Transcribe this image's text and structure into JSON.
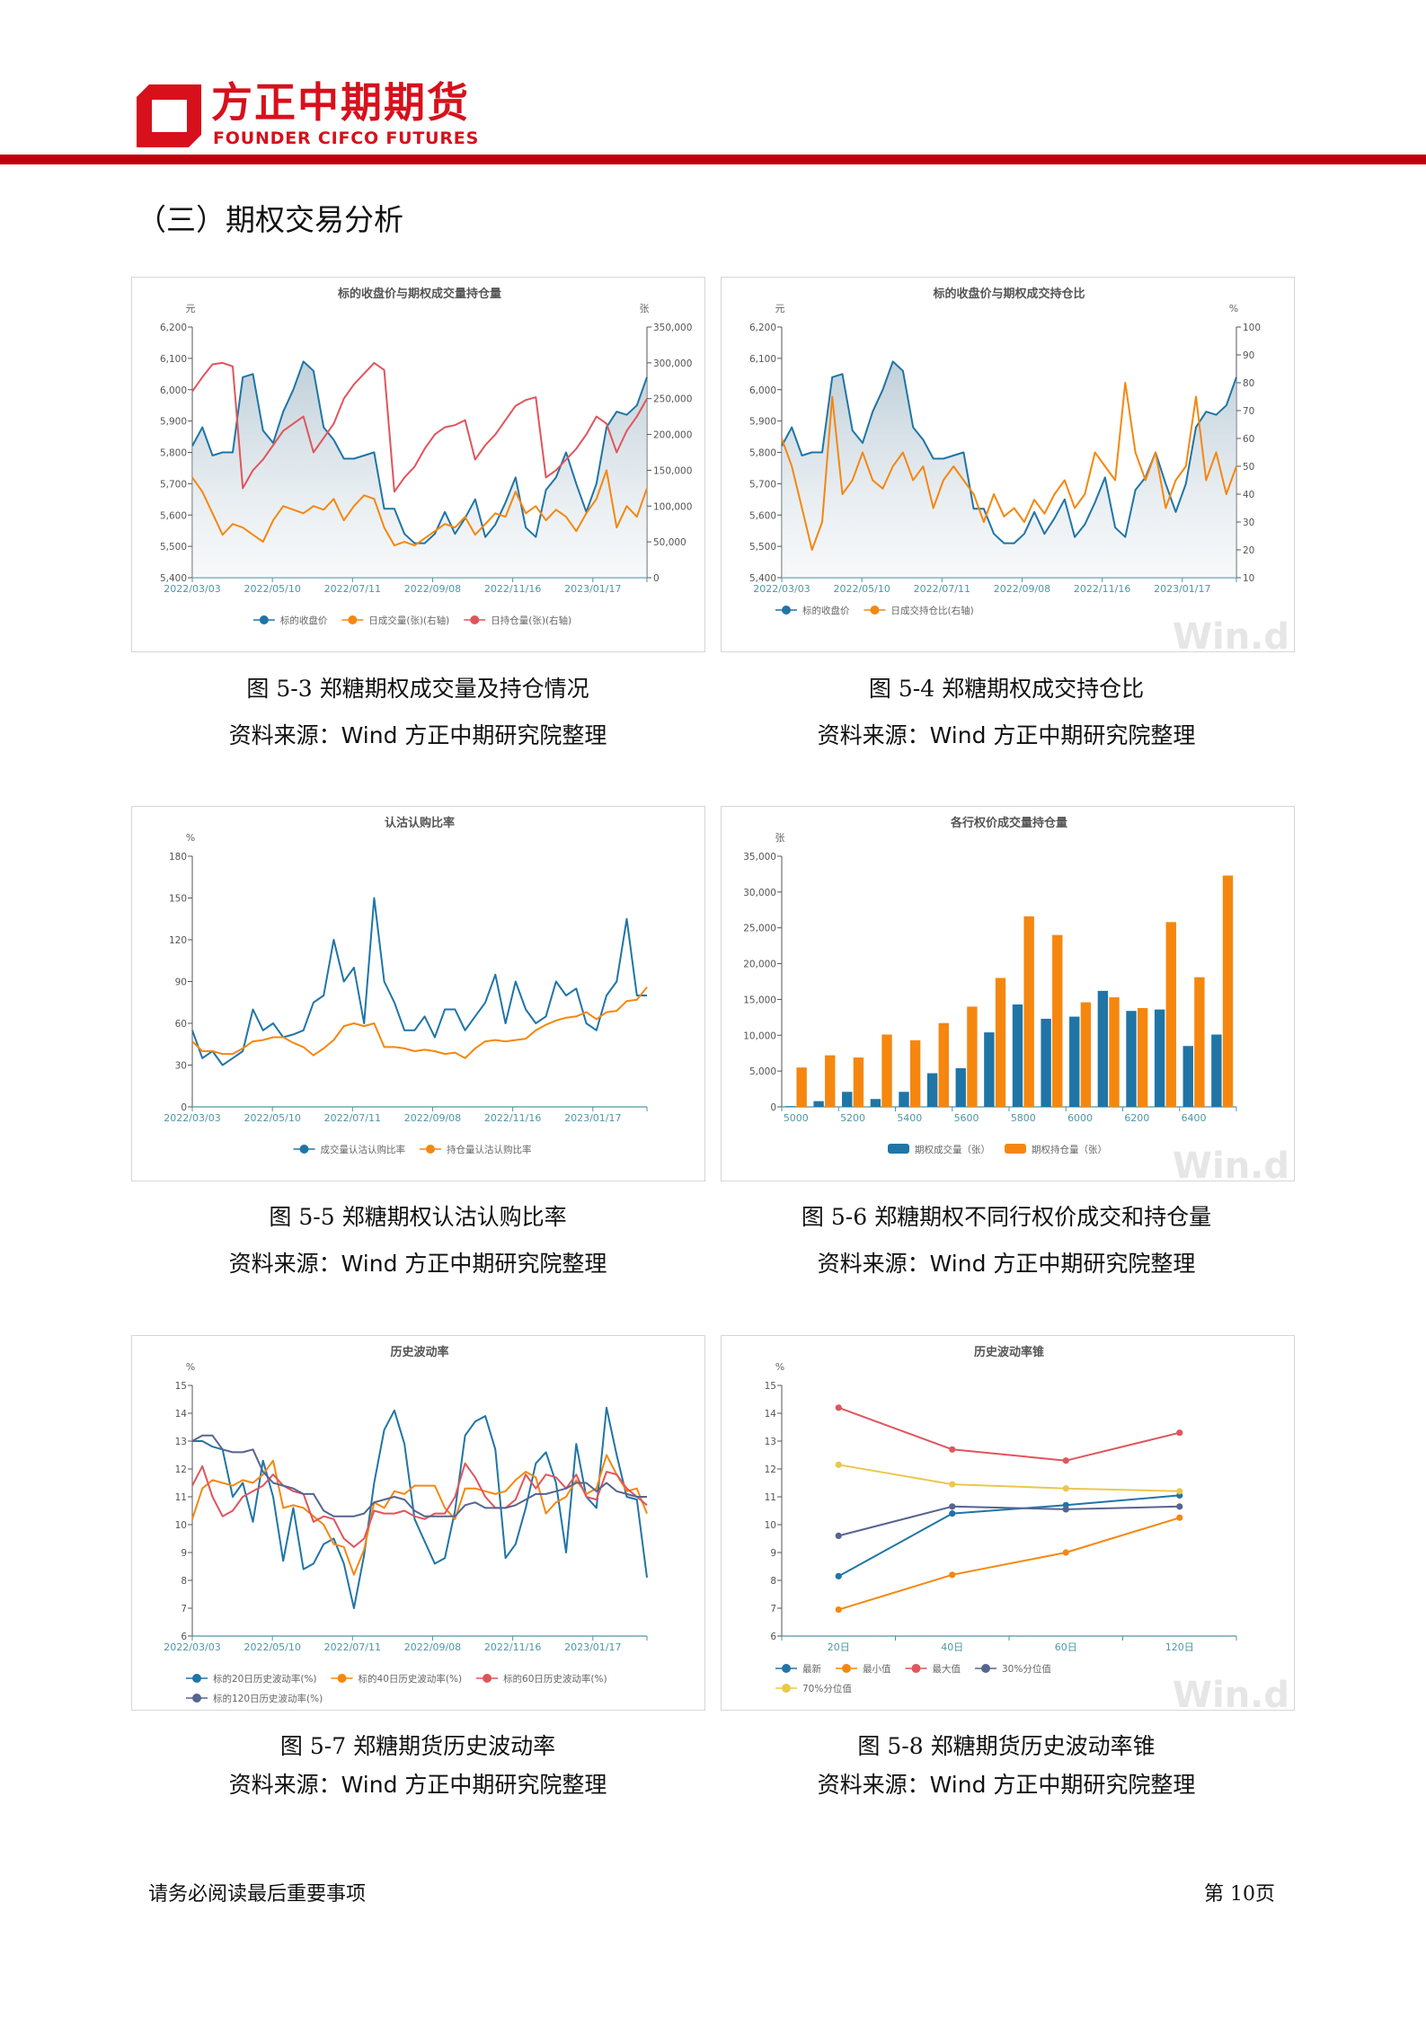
{
  "header": {
    "logo_cn": "方正中期期货",
    "logo_en": "FOUNDER CIFCO FUTURES",
    "brand_color": "#d7101c",
    "bar_color": "#c0000c"
  },
  "section_title": "（三）期权交易分析",
  "footer": {
    "left": "请务必阅读最后重要事项",
    "right": "第 10页"
  },
  "colors": {
    "blue": "#1f75a6",
    "orange": "#f5870f",
    "red": "#e0555c",
    "slate": "#56648f",
    "yellow": "#e9c84c",
    "axis": "#4d97a3"
  },
  "captions": [
    {
      "figure": "图 5-3  郑糖期权成交量及持仓情况",
      "source_prefix": "资料来源：",
      "source_en": "Wind",
      "source_suffix": "  方正中期研究院整理"
    },
    {
      "figure": "图 5-4   郑糖期权成交持仓比",
      "source_prefix": "资料来源：",
      "source_en": "Wind",
      "source_suffix": "  方正中期研究院整理"
    },
    {
      "figure": "图 5-5    郑糖期权认沽认购比率",
      "source_prefix": "资料来源：",
      "source_en": "Wind",
      "source_suffix": "  方正中期研究院整理"
    },
    {
      "figure": "图 5-6    郑糖期权不同行权价成交和持仓量",
      "source_prefix": "资料来源：",
      "source_en": "Wind",
      "source_suffix": "  方正中期研究院整理"
    },
    {
      "figure": "图 5-7    郑糖期货历史波动率",
      "source_prefix": "资料来源：",
      "source_en": "Wind",
      "source_suffix": "  方正中期研究院整理"
    },
    {
      "figure": "图 5-8   郑糖期货历史波动率锥",
      "source_prefix": "资料来源：",
      "source_en": "Wind",
      "source_suffix": "  方正中期研究院整理"
    }
  ],
  "chart_data": [
    {
      "type": "line",
      "title": "标的收盘价与期权成交量持仓量",
      "ylabel_left": "元",
      "ylabel_right": "张",
      "x_ticks": [
        "2022/03/03",
        "2022/05/10",
        "2022/07/11",
        "2022/09/08",
        "2022/11/16",
        "2023/01/17"
      ],
      "ylim_left": [
        5400,
        6200
      ],
      "yticks_left": [
        5400,
        5500,
        5600,
        5700,
        5800,
        5900,
        6000,
        6100,
        6200
      ],
      "ylim_right": [
        0,
        350000
      ],
      "yticks_right": [
        0,
        50000,
        100000,
        150000,
        200000,
        250000,
        300000,
        350000
      ],
      "legend_position": "bottom",
      "grid": false,
      "watermark": "",
      "series": [
        {
          "name": "标的收盘价",
          "axis": "left",
          "color": "#1f75a6",
          "area": true,
          "values": [
            5820,
            5880,
            5790,
            5800,
            5800,
            6040,
            6050,
            5870,
            5830,
            5930,
            6000,
            6090,
            6060,
            5880,
            5840,
            5780,
            5780,
            5790,
            5800,
            5620,
            5620,
            5540,
            5510,
            5510,
            5540,
            5610,
            5540,
            5590,
            5650,
            5530,
            5570,
            5640,
            5720,
            5560,
            5530,
            5680,
            5720,
            5800,
            5700,
            5610,
            5700,
            5880,
            5930,
            5920,
            5950,
            6040
          ]
        },
        {
          "name": "日成交量(张)(右轴)",
          "axis": "right",
          "color": "#f5870f",
          "values": [
            140000,
            120000,
            90000,
            60000,
            75000,
            70000,
            60000,
            50000,
            80000,
            100000,
            95000,
            90000,
            100000,
            95000,
            110000,
            80000,
            100000,
            115000,
            110000,
            70000,
            45000,
            50000,
            45000,
            55000,
            65000,
            75000,
            70000,
            85000,
            60000,
            75000,
            90000,
            85000,
            120000,
            90000,
            100000,
            80000,
            95000,
            85000,
            65000,
            90000,
            110000,
            150000,
            70000,
            100000,
            85000,
            125000
          ]
        },
        {
          "name": "日持仓量(张)(右轴)",
          "axis": "right",
          "color": "#e0555c",
          "values": [
            260000,
            280000,
            298000,
            300000,
            295000,
            125000,
            150000,
            165000,
            185000,
            205000,
            215000,
            225000,
            175000,
            195000,
            215000,
            250000,
            270000,
            285000,
            300000,
            290000,
            120000,
            140000,
            155000,
            180000,
            200000,
            210000,
            213000,
            220000,
            165000,
            185000,
            200000,
            220000,
            240000,
            248000,
            252000,
            140000,
            150000,
            165000,
            180000,
            200000,
            225000,
            215000,
            175000,
            205000,
            225000,
            250000
          ]
        }
      ]
    },
    {
      "type": "line",
      "title": "标的收盘价与期权成交持仓比",
      "ylabel_left": "元",
      "ylabel_right": "%",
      "x_ticks": [
        "2022/03/03",
        "2022/05/10",
        "2022/07/11",
        "2022/09/08",
        "2022/11/16",
        "2023/01/17"
      ],
      "ylim_left": [
        5400,
        6200
      ],
      "yticks_left": [
        5400,
        5500,
        5600,
        5700,
        5800,
        5900,
        6000,
        6100,
        6200
      ],
      "ylim_right": [
        10,
        100
      ],
      "yticks_right": [
        10,
        20,
        30,
        40,
        50,
        60,
        70,
        80,
        90,
        100
      ],
      "legend_position": "bottom",
      "grid": false,
      "watermark": "Win.d",
      "series": [
        {
          "name": "标的收盘价",
          "axis": "left",
          "color": "#1f75a6",
          "area": true,
          "values": [
            5820,
            5880,
            5790,
            5800,
            5800,
            6040,
            6050,
            5870,
            5830,
            5930,
            6000,
            6090,
            6060,
            5880,
            5840,
            5780,
            5780,
            5790,
            5800,
            5620,
            5620,
            5540,
            5510,
            5510,
            5540,
            5610,
            5540,
            5590,
            5650,
            5530,
            5570,
            5640,
            5720,
            5560,
            5530,
            5680,
            5720,
            5800,
            5700,
            5610,
            5700,
            5880,
            5930,
            5920,
            5950,
            6040
          ]
        },
        {
          "name": "日成交持仓比(右轴)",
          "axis": "right",
          "color": "#f5870f",
          "values": [
            60,
            50,
            35,
            20,
            30,
            75,
            40,
            45,
            55,
            45,
            42,
            50,
            55,
            45,
            50,
            35,
            45,
            50,
            45,
            40,
            30,
            40,
            32,
            35,
            30,
            38,
            33,
            40,
            45,
            35,
            40,
            55,
            50,
            45,
            80,
            55,
            45,
            55,
            35,
            45,
            50,
            75,
            45,
            55,
            40,
            50
          ]
        }
      ]
    },
    {
      "type": "line",
      "title": "认沽认购比率",
      "ylabel_left": "%",
      "x_ticks": [
        "2022/03/03",
        "2022/05/10",
        "2022/07/11",
        "2022/09/08",
        "2022/11/16",
        "2023/01/17"
      ],
      "ylim_left": [
        0,
        180
      ],
      "yticks_left": [
        0,
        30,
        60,
        90,
        120,
        150,
        180
      ],
      "legend_position": "bottom",
      "grid": false,
      "watermark": "",
      "series": [
        {
          "name": "成交量认沽认购比率",
          "axis": "left",
          "color": "#1f75a6",
          "values": [
            55,
            35,
            40,
            30,
            35,
            40,
            70,
            55,
            60,
            50,
            52,
            55,
            75,
            80,
            120,
            90,
            100,
            60,
            150,
            90,
            75,
            55,
            55,
            65,
            50,
            70,
            70,
            55,
            65,
            75,
            95,
            60,
            90,
            70,
            60,
            65,
            90,
            80,
            85,
            60,
            55,
            80,
            90,
            135,
            80,
            80
          ]
        },
        {
          "name": "持仓量认沽认购比率",
          "axis": "left",
          "color": "#f5870f",
          "values": [
            47,
            40,
            40,
            38,
            38,
            42,
            47,
            48,
            50,
            50,
            46,
            43,
            37,
            42,
            48,
            58,
            60,
            58,
            60,
            43,
            43,
            42,
            40,
            41,
            40,
            38,
            39,
            35,
            42,
            47,
            48,
            47,
            48,
            49,
            55,
            59,
            62,
            64,
            65,
            68,
            63,
            68,
            69,
            76,
            77,
            86
          ]
        }
      ]
    },
    {
      "type": "bar",
      "title": "各行权价成交量持仓量",
      "ylabel_left": "张",
      "categories": [
        "5000",
        "5100",
        "5200",
        "5300",
        "5400",
        "5500",
        "5600",
        "5700",
        "5800",
        "5900",
        "6000",
        "6100",
        "6200",
        "6300",
        "6400",
        "6500"
      ],
      "x_tick_labels": [
        "5000",
        "5200",
        "5400",
        "5600",
        "5800",
        "6000",
        "6200",
        "6400"
      ],
      "ylim_left": [
        0,
        35000
      ],
      "yticks_left": [
        0,
        5000,
        10000,
        15000,
        20000,
        25000,
        30000,
        35000
      ],
      "legend_position": "bottom",
      "grid": false,
      "watermark": "Win.d",
      "series": [
        {
          "name": "期权成交量（张）",
          "color": "#1f75a6",
          "values": [
            100,
            800,
            2100,
            1100,
            2100,
            4700,
            5400,
            10400,
            14300,
            12300,
            12600,
            16200,
            13400,
            13600,
            8500,
            10100
          ]
        },
        {
          "name": "期权持仓量（张）",
          "color": "#f5870f",
          "values": [
            5500,
            7200,
            6900,
            10100,
            9300,
            11700,
            14000,
            18000,
            26600,
            24000,
            14600,
            15300,
            13800,
            25800,
            18100,
            32300
          ]
        }
      ]
    },
    {
      "type": "line",
      "title": "历史波动率",
      "ylabel_left": "%",
      "x_ticks": [
        "2022/03/03",
        "2022/05/10",
        "2022/07/11",
        "2022/09/08",
        "2022/11/16",
        "2023/01/17"
      ],
      "ylim_left": [
        6,
        15
      ],
      "yticks_left": [
        6,
        7,
        8,
        9,
        10,
        11,
        12,
        13,
        14,
        15
      ],
      "legend_position": "bottom",
      "grid": false,
      "watermark": "",
      "series": [
        {
          "name": "标的20日历史波动率(%)",
          "axis": "left",
          "color": "#1f75a6",
          "values": [
            13,
            13,
            12.8,
            12.7,
            11,
            11.5,
            10.1,
            12.3,
            11,
            8.7,
            10.6,
            8.4,
            8.6,
            9.3,
            9.5,
            8.6,
            7.0,
            8.9,
            11.5,
            13.4,
            14.1,
            12.9,
            10.2,
            9.4,
            8.6,
            8.8,
            10.5,
            13.2,
            13.7,
            13.9,
            12.7,
            8.8,
            9.3,
            10.6,
            12.2,
            12.6,
            11.5,
            9.0,
            12.9,
            11.0,
            10.6,
            14.2,
            12.5,
            11.0,
            10.9,
            8.1
          ]
        },
        {
          "name": "标的40日历史波动率(%)",
          "axis": "left",
          "color": "#f5870f",
          "values": [
            10.2,
            11.3,
            11.6,
            11.5,
            11.4,
            11.6,
            11.5,
            11.8,
            12.3,
            10.6,
            10.7,
            10.6,
            10.3,
            10.0,
            9.3,
            9.2,
            8.2,
            9.1,
            10.8,
            10.6,
            11.2,
            11.1,
            11.4,
            11.4,
            11.4,
            10.6,
            10.2,
            11.3,
            11.3,
            11.2,
            11.1,
            11.2,
            11.6,
            11.9,
            11.7,
            10.4,
            10.8,
            11.0,
            11.6,
            11.1,
            11.3,
            12.5,
            11.8,
            11.2,
            11.3,
            10.4
          ]
        },
        {
          "name": "标的60日历史波动率(%)",
          "axis": "left",
          "color": "#e0555c",
          "values": [
            11.4,
            12.1,
            11.0,
            10.3,
            10.5,
            11.0,
            11.2,
            11.4,
            11.8,
            11.4,
            11.2,
            11.1,
            10.1,
            10.3,
            10.2,
            9.5,
            9.2,
            9.5,
            10.5,
            10.4,
            10.4,
            10.5,
            10.3,
            10.2,
            10.4,
            10.4,
            11.0,
            12.2,
            11.7,
            11.0,
            10.6,
            10.6,
            10.9,
            11.8,
            11.3,
            11.8,
            11.7,
            11.3,
            11.8,
            11.0,
            10.9,
            11.9,
            11.8,
            11.3,
            11.0,
            10.7
          ]
        },
        {
          "name": "标的120日历史波动率(%)",
          "axis": "left",
          "color": "#56648f",
          "values": [
            13.0,
            13.2,
            13.2,
            12.7,
            12.6,
            12.6,
            12.7,
            11.9,
            11.5,
            11.4,
            11.3,
            11.1,
            11.1,
            10.5,
            10.3,
            10.3,
            10.3,
            10.4,
            10.8,
            10.9,
            11.0,
            10.9,
            10.5,
            10.3,
            10.3,
            10.3,
            10.3,
            10.7,
            10.8,
            10.6,
            10.6,
            10.6,
            10.7,
            10.9,
            11.1,
            11.1,
            11.2,
            11.3,
            11.5,
            11.5,
            11.2,
            11.5,
            11.2,
            11.1,
            11.0,
            11.0
          ]
        }
      ]
    },
    {
      "type": "line",
      "title": "历史波动率锥",
      "ylabel_left": "%",
      "categories": [
        "20日",
        "40日",
        "60日",
        "120日"
      ],
      "ylim_left": [
        6,
        15
      ],
      "yticks_left": [
        6,
        7,
        8,
        9,
        10,
        11,
        12,
        13,
        14,
        15
      ],
      "legend_position": "bottom",
      "grid": false,
      "watermark": "Win.d",
      "series": [
        {
          "name": "最新",
          "color": "#1f75a6",
          "values": [
            8.15,
            10.4,
            10.7,
            11.05
          ]
        },
        {
          "name": "最小值",
          "color": "#f5870f",
          "values": [
            6.95,
            8.2,
            9.0,
            10.25
          ]
        },
        {
          "name": "最大值",
          "color": "#e0555c",
          "values": [
            14.2,
            12.7,
            12.3,
            13.3
          ]
        },
        {
          "name": "30%分位值",
          "color": "#56648f",
          "values": [
            9.6,
            10.65,
            10.55,
            10.65
          ]
        },
        {
          "name": "70%分位值",
          "color": "#e9c84c",
          "values": [
            12.15,
            11.45,
            11.3,
            11.2
          ]
        }
      ]
    }
  ]
}
